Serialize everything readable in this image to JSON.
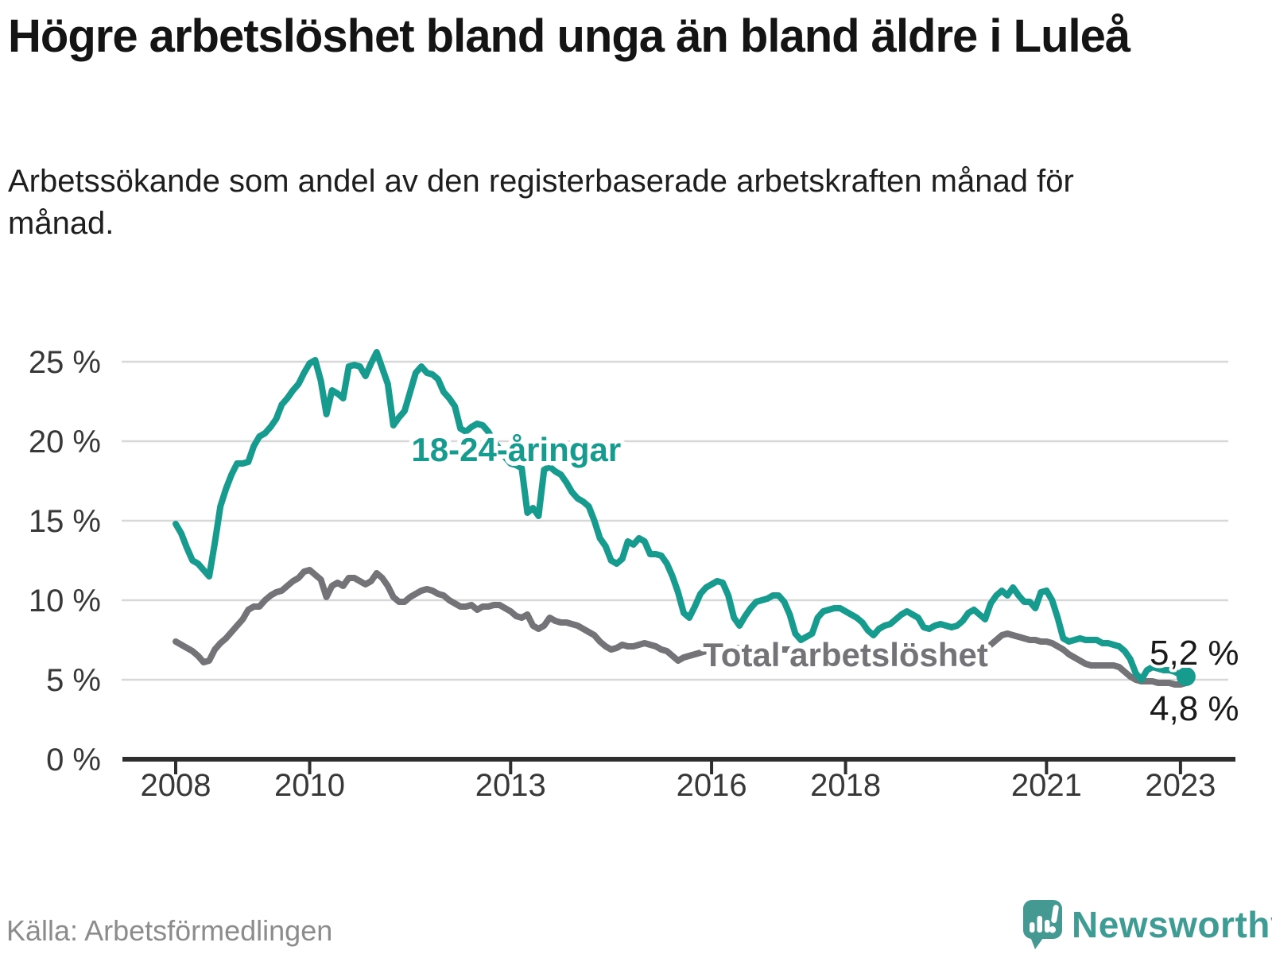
{
  "header": {
    "title": "Högre arbetslöshet bland unga än bland äldre i Luleå",
    "subtitle": "Arbetssökande som andel av den registerbaserade arbetskraften månad för månad."
  },
  "colors": {
    "youth_line": "#189b8f",
    "total_line": "#737378",
    "axis": "#2e2e2e",
    "grid": "#d8d8d8",
    "end_label_text": "#1a1a1a",
    "brand_teal": "#3f9c94",
    "source_gray": "#8c8c8c"
  },
  "chart_data": {
    "type": "line",
    "frequency": "monthly",
    "x_start": "2008-01",
    "x_end": "2023-02",
    "xlabel": "",
    "ylabel": "",
    "ylim": [
      0,
      27
    ],
    "grid": "horizontal",
    "legend_position": "inline-labels",
    "x_ticks": [
      2008,
      2010,
      2013,
      2016,
      2018,
      2021,
      2023
    ],
    "y_ticks": [
      {
        "value": 0,
        "label": "0 %"
      },
      {
        "value": 5,
        "label": "5 %"
      },
      {
        "value": 10,
        "label": "10 %"
      },
      {
        "value": 15,
        "label": "15 %"
      },
      {
        "value": 20,
        "label": "20 %"
      },
      {
        "value": 25,
        "label": "25 %"
      }
    ],
    "series": [
      {
        "name": "18-24-åringar",
        "color": "#189b8f",
        "end_marker": true,
        "end_label": "5,2 %",
        "label_anchor": {
          "month_index": 61,
          "value": 19.5
        },
        "values": [
          14.8,
          14.2,
          13.3,
          12.5,
          12.3,
          11.9,
          11.5,
          13.6,
          15.9,
          17,
          17.9,
          18.6,
          18.6,
          18.7,
          19.7,
          20.3,
          20.5,
          20.9,
          21.4,
          22.3,
          22.7,
          23.2,
          23.6,
          24.3,
          24.9,
          25.1,
          23.8,
          21.7,
          23.2,
          23,
          22.7,
          24.7,
          24.8,
          24.7,
          24.1,
          24.9,
          25.6,
          24.6,
          23.6,
          21,
          21.5,
          21.9,
          23.1,
          24.3,
          24.7,
          24.3,
          24.2,
          23.9,
          23.1,
          22.7,
          22.2,
          20.8,
          20.6,
          20.9,
          21.1,
          21,
          20.6,
          20,
          19.5,
          19,
          18.6,
          18.5,
          18.3,
          15.5,
          15.8,
          15.3,
          18.2,
          18.4,
          18.1,
          17.9,
          17.4,
          16.8,
          16.4,
          16.2,
          15.9,
          15,
          13.9,
          13.4,
          12.5,
          12.3,
          12.6,
          13.7,
          13.5,
          13.9,
          13.7,
          12.9,
          12.9,
          12.8,
          12.3,
          11.5,
          10.5,
          9.2,
          8.9,
          9.6,
          10.4,
          10.8,
          11,
          11.2,
          11.1,
          10.3,
          8.9,
          8.4,
          9,
          9.5,
          9.9,
          10,
          10.1,
          10.3,
          10.3,
          9.9,
          9.1,
          7.9,
          7.5,
          7.7,
          7.9,
          8.9,
          9.3,
          9.4,
          9.5,
          9.5,
          9.3,
          9.1,
          8.9,
          8.6,
          8.1,
          7.8,
          8.2,
          8.4,
          8.5,
          8.8,
          9.1,
          9.3,
          9.1,
          8.9,
          8.3,
          8.2,
          8.4,
          8.5,
          8.4,
          8.3,
          8.4,
          8.7,
          9.2,
          9.4,
          9.1,
          8.8,
          9.8,
          10.3,
          10.6,
          10.3,
          10.8,
          10.3,
          9.9,
          9.9,
          9.5,
          10.5,
          10.6,
          10,
          8.9,
          7.6,
          7.4,
          7.5,
          7.6,
          7.5,
          7.5,
          7.5,
          7.3,
          7.3,
          7.2,
          7.1,
          6.8,
          6.3,
          5.4,
          5,
          5.6,
          5.8,
          5.7,
          5.6,
          5.6,
          5.5,
          5.3,
          5.2
        ]
      },
      {
        "name": "Total arbetslöshet",
        "color": "#737378",
        "end_marker": false,
        "end_label": "4,8 %",
        "label_anchor": {
          "month_index": 120,
          "value": 6.6
        },
        "values": [
          7.4,
          7.2,
          7,
          6.8,
          6.5,
          6.1,
          6.2,
          6.9,
          7.3,
          7.6,
          8,
          8.4,
          8.8,
          9.4,
          9.6,
          9.6,
          10,
          10.3,
          10.5,
          10.6,
          10.9,
          11.2,
          11.4,
          11.8,
          11.9,
          11.6,
          11.3,
          10.2,
          10.9,
          11.1,
          10.9,
          11.4,
          11.4,
          11.2,
          11,
          11.2,
          11.7,
          11.4,
          10.9,
          10.2,
          9.9,
          9.9,
          10.2,
          10.4,
          10.6,
          10.7,
          10.6,
          10.4,
          10.3,
          10,
          9.8,
          9.6,
          9.6,
          9.7,
          9.4,
          9.6,
          9.6,
          9.7,
          9.7,
          9.5,
          9.3,
          9,
          8.9,
          9.1,
          8.4,
          8.2,
          8.4,
          8.9,
          8.7,
          8.6,
          8.6,
          8.5,
          8.4,
          8.2,
          8,
          7.8,
          7.4,
          7.1,
          6.9,
          7,
          7.2,
          7.1,
          7.1,
          7.2,
          7.3,
          7.2,
          7.1,
          6.9,
          6.8,
          6.5,
          6.2,
          6.4,
          6.5,
          6.6,
          6.7,
          6.8,
          6.8,
          6.9,
          6.9,
          6.9,
          7,
          7,
          7,
          6.9,
          6.9,
          6.8,
          6.8,
          6.8,
          6.9,
          6.9,
          6.9,
          6.8,
          6.8,
          6.7,
          6.7,
          6.6,
          6.7,
          6.7,
          6.7,
          6.6,
          6.6,
          6.5,
          6.5,
          6.4,
          6.4,
          6.3,
          6.4,
          6.4,
          6.5,
          6.5,
          6.6,
          6.6,
          6.6,
          6.6,
          6.5,
          6.5,
          6.5,
          6.6,
          6.6,
          6.7,
          6.7,
          6.8,
          6.8,
          6.9,
          7,
          7,
          7.2,
          7.5,
          7.8,
          7.9,
          7.8,
          7.7,
          7.6,
          7.5,
          7.5,
          7.4,
          7.4,
          7.3,
          7.1,
          6.9,
          6.6,
          6.4,
          6.2,
          6,
          5.9,
          5.9,
          5.9,
          5.9,
          5.9,
          5.8,
          5.5,
          5.2,
          5,
          4.9,
          4.9,
          4.9,
          4.8,
          4.8,
          4.8,
          4.7,
          4.7,
          4.8
        ]
      }
    ]
  },
  "footer": {
    "source": "Källa: Arbetsförmedlingen",
    "brand": "Newsworthy"
  }
}
